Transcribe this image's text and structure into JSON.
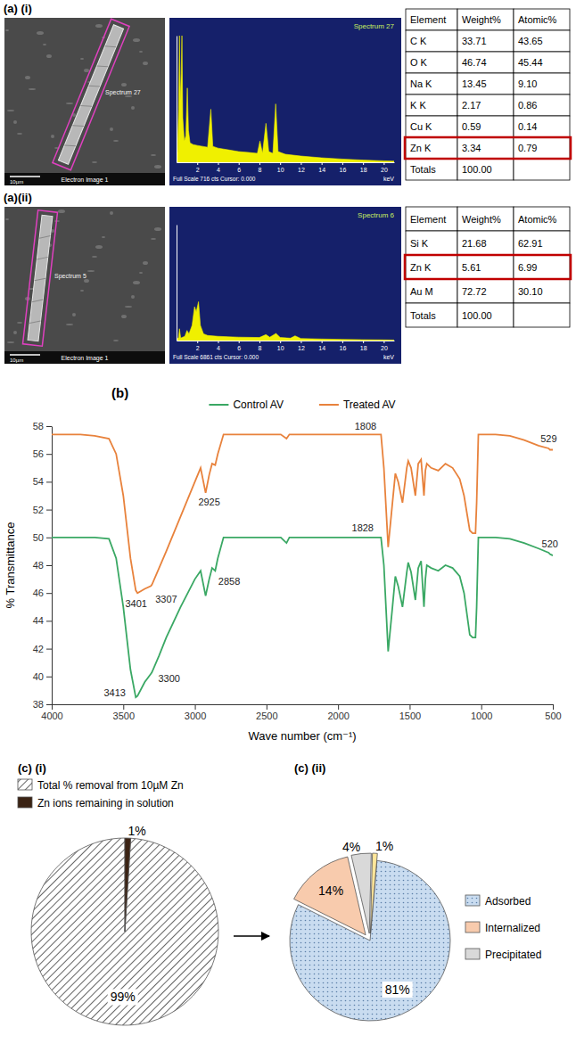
{
  "panel_labels": [
    "(a) (i)",
    "(a)(ii)",
    "(b)",
    "(c) (i)",
    "(c) (ii)"
  ],
  "sem_images": [
    {
      "region_label": "Spectrum 27",
      "caption": "Electron Image 1",
      "scale_bar": "10µm"
    },
    {
      "region_label": "Spectrum 5",
      "caption": "Electron Image 1",
      "scale_bar": "10µm"
    }
  ],
  "tables": [
    {
      "header": [
        "Element",
        "Weight%",
        "Atomic%"
      ],
      "rows": [
        [
          "C K",
          "33.71",
          "43.65"
        ],
        [
          "O K",
          "46.74",
          "45.44"
        ],
        [
          "Na K",
          "13.45",
          "9.10"
        ],
        [
          "K K",
          "2.17",
          "0.86"
        ],
        [
          "Cu K",
          "0.59",
          "0.14"
        ],
        [
          "Zn K",
          "3.34",
          "0.79"
        ],
        [
          "Totals",
          "100.00"
        ]
      ],
      "highlight": "Zn K"
    },
    {
      "header": [
        "Element",
        "Weight%",
        "Atomic%"
      ],
      "rows": [
        [
          "Si K",
          "21.68",
          "62.91"
        ],
        [
          "Zn K",
          "5.61",
          "6.99"
        ],
        [
          "Au M",
          "72.72",
          "30.10"
        ],
        [
          "Totals",
          "100.00"
        ]
      ],
      "highlight": "Zn K"
    }
  ],
  "chart_data": [
    {
      "type": "area",
      "title": "Spectrum 27",
      "subtitle": "Full Scale 716 cts Cursor: 0.000",
      "x_label": "keV",
      "x": [
        0,
        0.1,
        0.2,
        0.28,
        0.36,
        0.45,
        0.52,
        0.6,
        0.75,
        0.9,
        1.04,
        1.15,
        1.3,
        1.6,
        2,
        2.5,
        3.0,
        3.31,
        3.5,
        4,
        5,
        6,
        7,
        7.8,
        8.05,
        8.3,
        8.63,
        8.9,
        9.3,
        9.57,
        9.8,
        10.5,
        12,
        14,
        16,
        18,
        20,
        21
      ],
      "values": [
        0,
        60,
        300,
        716,
        350,
        500,
        716,
        250,
        120,
        150,
        420,
        180,
        110,
        100,
        95,
        90,
        85,
        300,
        90,
        80,
        70,
        60,
        55,
        50,
        120,
        50,
        220,
        60,
        50,
        330,
        60,
        45,
        35,
        25,
        18,
        12,
        8,
        6
      ],
      "xlim": [
        0,
        21
      ],
      "ylim": [
        0,
        716
      ],
      "xticks": [
        2,
        4,
        6,
        8,
        10,
        12,
        14,
        16,
        18,
        20
      ],
      "color": "#f0f000",
      "tick_labels": "x"
    },
    {
      "type": "area",
      "title": "Spectrum 6",
      "subtitle": "Full Scale 6861 cts Cursor: 0.000",
      "x_label": "keV",
      "x": [
        0,
        0.2,
        0.28,
        0.4,
        0.8,
        1.01,
        1.2,
        1.5,
        1.74,
        1.9,
        2.12,
        2.3,
        2.6,
        3,
        4,
        6,
        8,
        8.63,
        9,
        9.6,
        10,
        11,
        11.44,
        12,
        14,
        16,
        18,
        20,
        21
      ],
      "values": [
        0,
        200,
        700,
        150,
        250,
        600,
        400,
        900,
        2000,
        1700,
        2300,
        900,
        400,
        300,
        250,
        200,
        180,
        350,
        200,
        420,
        180,
        140,
        280,
        120,
        90,
        70,
        50,
        40,
        30
      ],
      "xlim": [
        0,
        21
      ],
      "ylim": [
        0,
        6861
      ],
      "xticks": [
        2,
        4,
        6,
        8,
        10,
        12,
        14,
        16,
        18,
        20
      ],
      "color": "#f0f000",
      "tick_labels": "x"
    },
    {
      "type": "line",
      "x_label": "Wave number (cm⁻¹)",
      "y_label": "% Transmittance",
      "x": [
        4000,
        3800,
        3700,
        3600,
        3550,
        3500,
        3450,
        3413,
        3401,
        3350,
        3307,
        3300,
        3250,
        3200,
        3100,
        3000,
        2960,
        2925,
        2900,
        2880,
        2858,
        2840,
        2800,
        2400,
        2360,
        2340,
        2000,
        1828,
        1808,
        1700,
        1680,
        1650,
        1620,
        1600,
        1580,
        1550,
        1520,
        1510,
        1490,
        1460,
        1440,
        1420,
        1400,
        1390,
        1380,
        1350,
        1300,
        1250,
        1200,
        1150,
        1120,
        1080,
        1060,
        1040,
        1032,
        1020,
        1000,
        900,
        800,
        700,
        600,
        529,
        520,
        500
      ],
      "series": [
        {
          "name": "Control AV",
          "color": "#3aa864",
          "values": [
            50,
            50,
            50,
            49.9,
            48.5,
            45,
            40.5,
            38.5,
            38.6,
            39.6,
            40.2,
            40.3,
            41.5,
            42.8,
            45,
            47,
            47.6,
            45.8,
            47,
            47.8,
            47.6,
            48.5,
            50,
            50,
            49.6,
            50,
            50,
            50,
            50,
            50,
            48,
            41.8,
            45,
            47.2,
            46.5,
            45,
            47.5,
            48.2,
            47.5,
            45.5,
            47.8,
            48.3,
            45,
            47,
            48,
            47.8,
            47.6,
            48,
            47.8,
            47.2,
            46,
            43,
            42.8,
            42.8,
            45,
            50,
            50,
            50,
            49.9,
            49.6,
            49.2,
            48.9,
            48.8,
            48.7
          ]
        },
        {
          "name": "Treated AV",
          "color": "#e8823c",
          "values": [
            57.4,
            57.4,
            57.3,
            57.1,
            56,
            53,
            48.5,
            46.2,
            46,
            46.3,
            46.5,
            46.6,
            47.8,
            49,
            51.5,
            54,
            55,
            53.2,
            54.5,
            55.3,
            55.2,
            56,
            57.4,
            57.4,
            57.1,
            57.4,
            57.4,
            57.4,
            57.4,
            57.4,
            55,
            49.3,
            52.5,
            54.6,
            54,
            52.5,
            55,
            55.5,
            55,
            53,
            55.3,
            55.6,
            53,
            54.8,
            55.3,
            55,
            54.8,
            55.3,
            55,
            54.2,
            53,
            50.5,
            50.3,
            50.3,
            52.5,
            57.4,
            57.4,
            57.4,
            57.3,
            57,
            56.6,
            56.4,
            56.3,
            56.3
          ]
        }
      ],
      "xlim": [
        4000,
        500
      ],
      "ylim": [
        38,
        58
      ],
      "xticks": [
        4000,
        3500,
        3000,
        2500,
        2000,
        1500,
        1000,
        500
      ],
      "yticks": [
        38,
        40,
        42,
        44,
        46,
        48,
        50,
        52,
        54,
        56,
        58
      ],
      "legend": "top",
      "annotations": [
        {
          "text": "1808",
          "x": 1808,
          "y": 57.75
        },
        {
          "text": "2925",
          "x": 2900,
          "y": 52.3
        },
        {
          "text": "3401",
          "x": 3410,
          "y": 45.0
        },
        {
          "text": "3307",
          "x": 3200,
          "y": 45.3
        },
        {
          "text": "529",
          "x": 529,
          "y": 56.85
        },
        {
          "text": "3413",
          "x": 3560,
          "y": 38.6
        },
        {
          "text": "3300",
          "x": 3180,
          "y": 39.6
        },
        {
          "text": "2858",
          "x": 2760,
          "y": 46.6
        },
        {
          "text": "1828",
          "x": 1828,
          "y": 50.45
        },
        {
          "text": "520",
          "x": 520,
          "y": 49.3
        }
      ]
    },
    {
      "type": "pie",
      "categories": [
        "Total % removal from 10µM Zn",
        "Zn ions remaining in solution"
      ],
      "values": [
        99,
        1
      ],
      "value_labels": [
        "99%",
        "1%"
      ],
      "colors": [
        "#ffffff",
        "#3b2314"
      ],
      "data_labels": true,
      "legend": "top-left"
    },
    {
      "type": "pie",
      "categories": [
        "Adsorbed",
        "Internalized",
        "Precipitated",
        null
      ],
      "values": [
        81,
        14,
        4,
        1
      ],
      "value_labels": [
        "81%",
        "14%",
        "4%",
        "1%"
      ],
      "colors": [
        "#c9dcf0",
        "#f8cbad",
        "#d9d9d9",
        "#ffe699"
      ],
      "data_labels": true,
      "legend": "right"
    }
  ]
}
